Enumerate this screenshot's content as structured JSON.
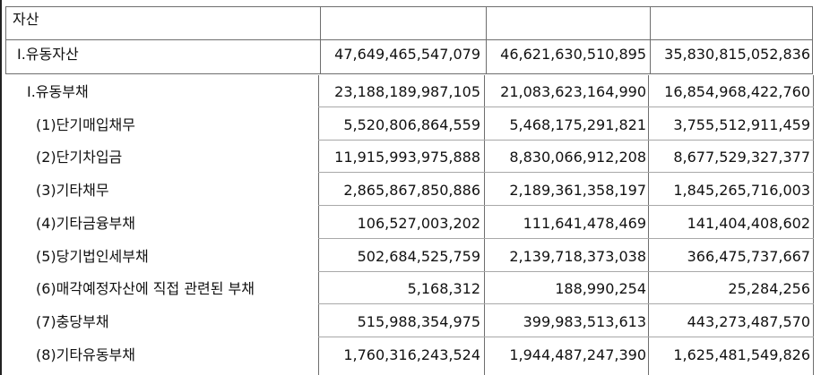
{
  "header_row": {
    "label": "자산"
  },
  "assets_row": {
    "label": "Ⅰ.유동자산",
    "values": [
      "47,649,465,547,079",
      "46,621,630,510,895",
      "35,830,815,052,836"
    ]
  },
  "rows": [
    {
      "label": "Ⅰ.유동부채",
      "values": [
        "23,188,189,987,105",
        "21,083,623,164,990",
        "16,854,968,422,760"
      ]
    },
    {
      "label": "(1)단기매입채무",
      "values": [
        "5,520,806,864,559",
        "5,468,175,291,821",
        "3,755,512,911,459"
      ]
    },
    {
      "label": "(2)단기차입금",
      "values": [
        "11,915,993,975,888",
        "8,830,066,912,208",
        "8,677,529,327,377"
      ]
    },
    {
      "label": "(3)기타채무",
      "values": [
        "2,865,867,850,886",
        "2,189,361,358,197",
        "1,845,265,716,003"
      ]
    },
    {
      "label": "(4)기타금융부채",
      "values": [
        "106,527,003,202",
        "111,641,478,469",
        "141,404,408,602"
      ]
    },
    {
      "label": "(5)당기법인세부채",
      "values": [
        "502,684,525,759",
        "2,139,718,373,038",
        "366,475,737,667"
      ]
    },
    {
      "label": "(6)매각예정자산에 직접 관련된 부채",
      "values": [
        "5,168,312",
        "188,990,254",
        "25,284,256"
      ]
    },
    {
      "label": "(7)충당부채",
      "values": [
        "515,988,354,975",
        "399,983,513,613",
        "443,273,487,570"
      ]
    },
    {
      "label": "(8)기타유동부채",
      "values": [
        "1,760,316,243,524",
        "1,944,487,247,390",
        "1,625,481,549,826"
      ]
    }
  ]
}
